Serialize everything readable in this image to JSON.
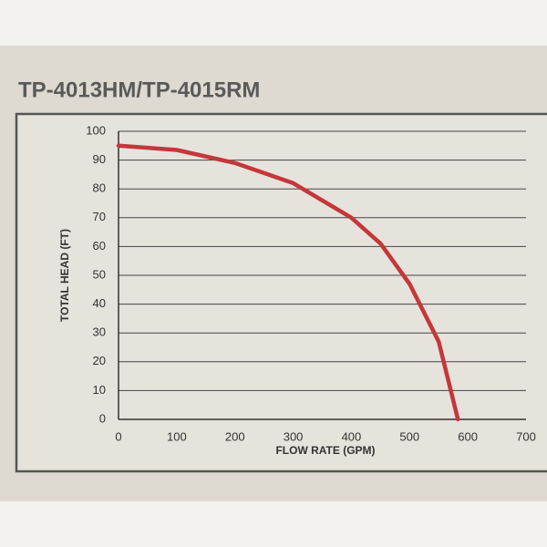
{
  "chart_data": {
    "type": "line",
    "title": "TP-4013HM/TP-4015RM",
    "x_label": "FLOW RATE (GPM)",
    "y_label": "TOTAL HEAD (FT)",
    "x": [
      0,
      100,
      200,
      300,
      400,
      450,
      500,
      550,
      583
    ],
    "values": [
      95,
      93.5,
      89,
      82,
      70,
      61,
      47,
      27,
      0
    ],
    "color": "#c4373a",
    "xlim": [
      0,
      700
    ],
    "xticks": [
      0,
      100,
      200,
      300,
      400,
      500,
      600,
      700
    ],
    "ylim": [
      0,
      100
    ],
    "yticks": [
      0,
      10,
      20,
      30,
      40,
      50,
      60,
      70,
      80,
      90,
      100
    ],
    "grid": "y"
  }
}
